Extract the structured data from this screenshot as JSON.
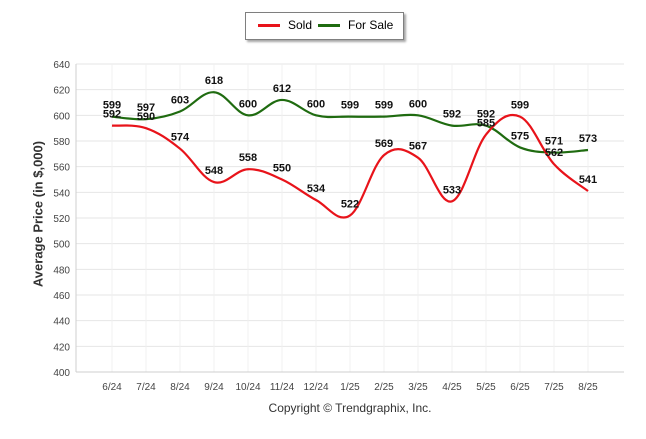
{
  "chart_data": {
    "type": "line",
    "title": "",
    "xlabel": "",
    "ylabel": "Average Price (in $,000)",
    "ylim": [
      400,
      640
    ],
    "yticks": [
      400,
      420,
      440,
      460,
      480,
      500,
      520,
      540,
      560,
      580,
      600,
      620,
      640
    ],
    "categories": [
      "6/24",
      "7/24",
      "8/24",
      "9/24",
      "10/24",
      "11/24",
      "12/24",
      "1/25",
      "2/25",
      "3/25",
      "4/25",
      "5/25",
      "6/25",
      "7/25",
      "8/25"
    ],
    "grid": true,
    "legend_position": "top-center",
    "series": [
      {
        "name": "Sold",
        "color": "#e8131a",
        "values": [
          592,
          590,
          574,
          548,
          558,
          550,
          534,
          522,
          569,
          567,
          533,
          585,
          599,
          562,
          541
        ]
      },
      {
        "name": "For Sale",
        "color": "#1f6b10",
        "values": [
          599,
          597,
          603,
          618,
          600,
          612,
          600,
          599,
          599,
          600,
          592,
          592,
          575,
          571,
          573
        ]
      }
    ]
  },
  "footer": {
    "copyright": "Copyright © Trendgraphix, Inc."
  }
}
